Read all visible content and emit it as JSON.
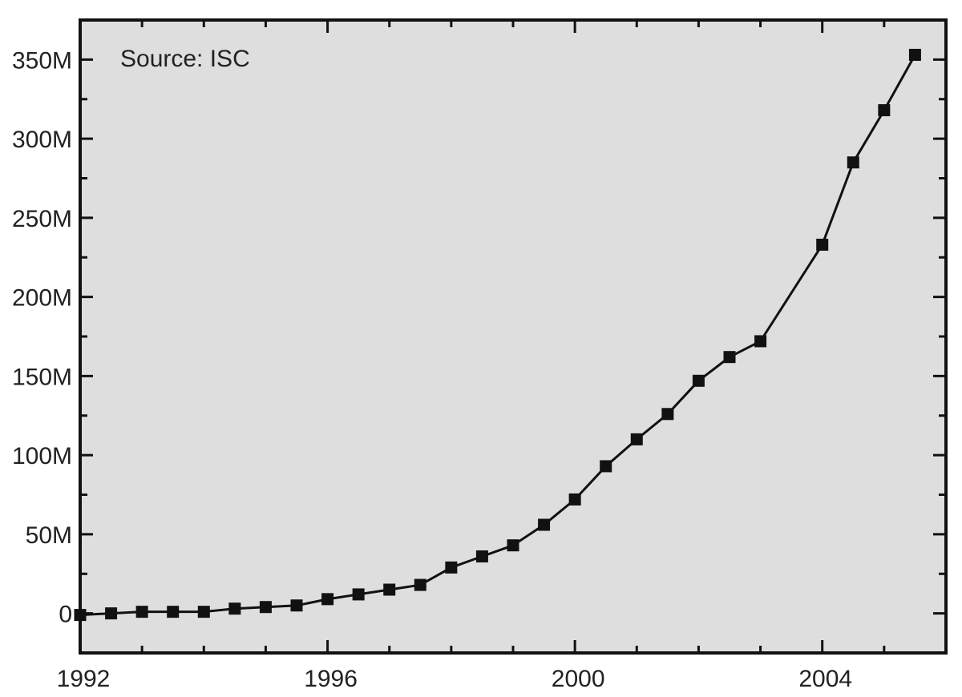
{
  "chart_data": {
    "type": "line",
    "title": "",
    "xlabel": "",
    "ylabel": "",
    "annotation": "Source: ISC",
    "xlim": [
      1992,
      2006
    ],
    "ylim": [
      -25,
      375
    ],
    "x_ticks": [
      1992,
      1996,
      2000,
      2004
    ],
    "x_tick_labels": [
      "1992",
      "1996",
      "2000",
      "2004"
    ],
    "y_ticks": [
      0,
      50,
      100,
      150,
      200,
      250,
      300,
      350
    ],
    "y_tick_labels": [
      "0",
      "50M",
      "100M",
      "150M",
      "200M",
      "250M",
      "300M",
      "350M"
    ],
    "grid": false,
    "legend": "none",
    "colors": {
      "plot_bg": "#dedede",
      "line": "#111111",
      "marker": "#111111",
      "frame": "#111111"
    },
    "marker": "square",
    "series": [
      {
        "x": [
          1992.0,
          1992.5,
          1993.0,
          1993.5,
          1994.0,
          1994.5,
          1995.0,
          1995.5,
          1996.0,
          1996.5,
          1997.0,
          1997.5,
          1998.0,
          1998.5,
          1999.0,
          1999.5,
          2000.0,
          2000.5,
          2001.0,
          2001.5,
          2002.0,
          2002.5,
          2003.0,
          2004.0,
          2004.5,
          2005.0,
          2005.5
        ],
        "y": [
          -1,
          0,
          1,
          1,
          1,
          3,
          4,
          5,
          9,
          12,
          15,
          18,
          29,
          36,
          43,
          56,
          72,
          93,
          110,
          126,
          147,
          162,
          172,
          233,
          285,
          318,
          353
        ]
      }
    ]
  }
}
